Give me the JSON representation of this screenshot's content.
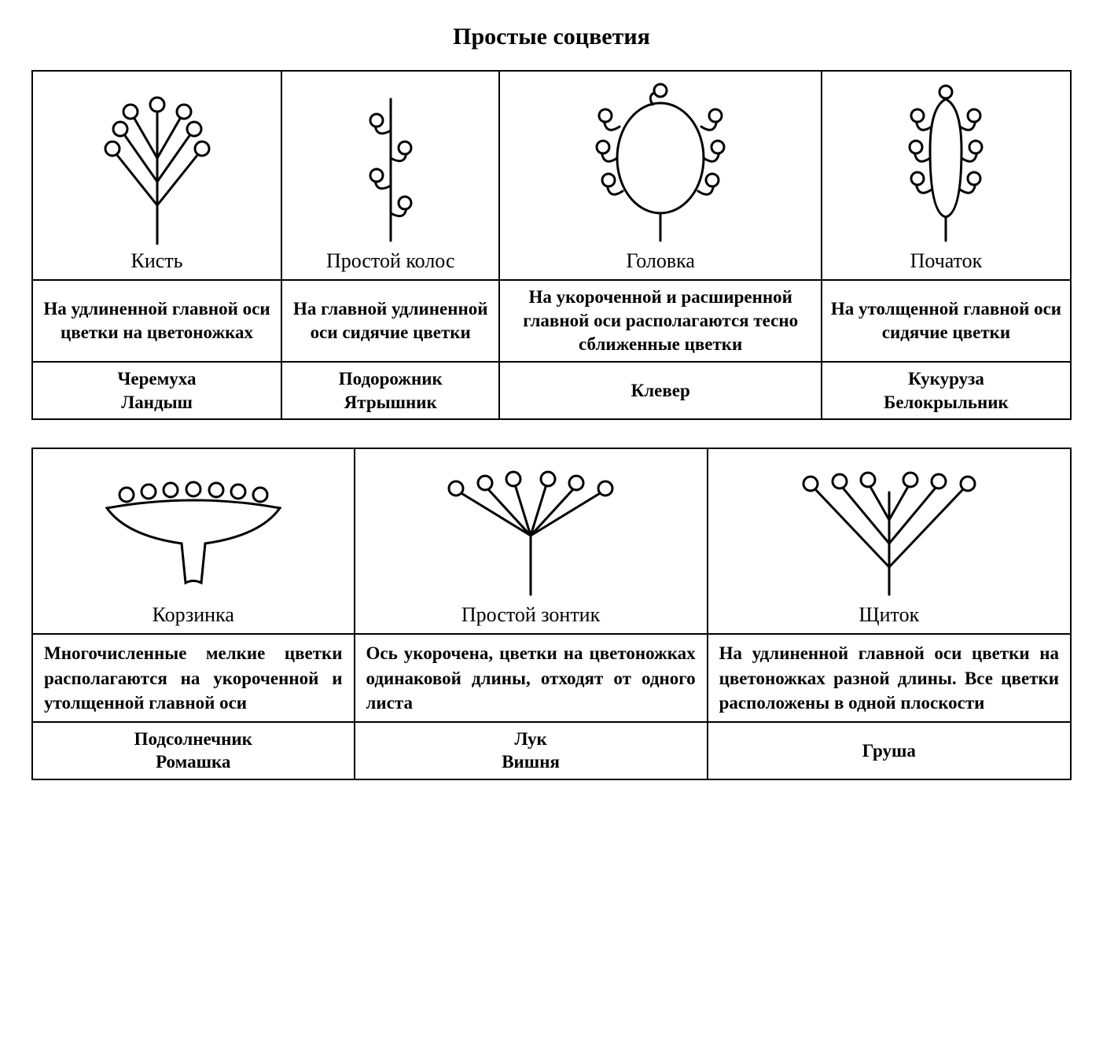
{
  "title": "Простые соцветия",
  "colors": {
    "stroke": "#000000",
    "fill": "#ffffff",
    "background": "#ffffff"
  },
  "stroke_width": 3,
  "table1": {
    "columns": 4,
    "items": [
      {
        "name": "Кисть",
        "description": "На удлиненной главной оси цветки на цветоножках",
        "examples": "Черемуха\nЛандыш"
      },
      {
        "name": "Простой колос",
        "description": "На главной удли­ненной оси сидя­чие цветки",
        "examples": "Подорожник\nЯтрышник"
      },
      {
        "name": "Головка",
        "description": "На укороченной и расширен­ной главной оси располагают­ся тесно сближенные цветки",
        "examples": "Клевер"
      },
      {
        "name": "Початок",
        "description": "На утолщенной главной оси сидячие цветки",
        "examples": "Кукуруза\nБелокрыльник"
      }
    ]
  },
  "table2": {
    "columns": 3,
    "items": [
      {
        "name": "Корзинка",
        "description": "Многочисленные мелкие цветки располагаются на укороченной и утолщен­ной главной оси",
        "examples": "Подсолнечник\nРомашка"
      },
      {
        "name": "Простой зонтик",
        "description": "Ось укорочена, цветки на цветоножках одинаковой длины, отходят от одного листа",
        "examples": "Лук\nВишня"
      },
      {
        "name": "Щиток",
        "description": "На удлиненной главной оси цветки на цветоножках разной длины. Все цветки расположены в одной плоскости",
        "examples": "Груша"
      }
    ]
  }
}
